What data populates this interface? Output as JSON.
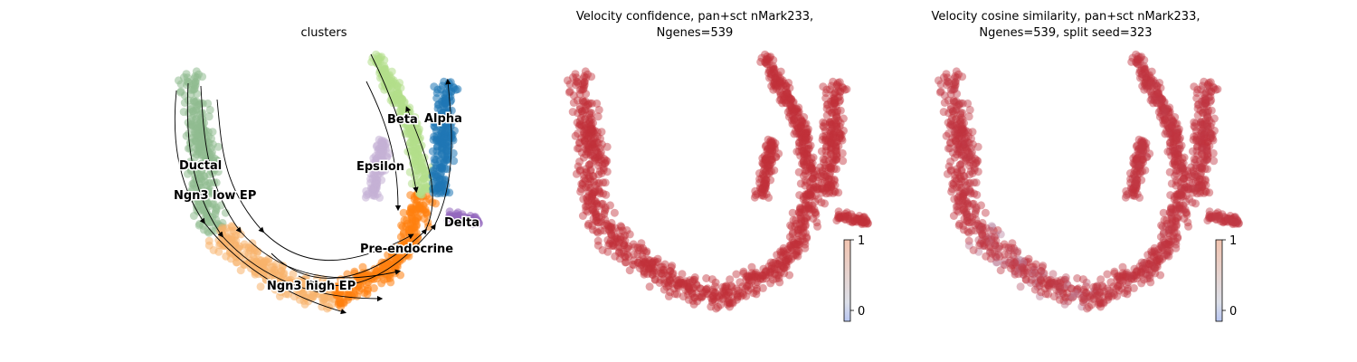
{
  "colors": {
    "Ductal": "#8fbc8f",
    "Ngn3 low EP": "#8fbc8f",
    "Ngn3 high EP": "#f7b26b",
    "Pre-endocrine": "#ff7f0e",
    "Beta": "#b2df8a",
    "Alpha": "#1f77b4",
    "Delta": "#9467bd",
    "Epsilon": "#c5b0d5",
    "velocity_high": "#c0303a",
    "velocity_low": "#b8c8f0",
    "stream": "#000000"
  },
  "panels": [
    {
      "title_lines": [
        "clusters"
      ],
      "clusters": [
        "Ductal",
        "Ngn3 low EP",
        "Ngn3 high EP",
        "Pre-endocrine",
        "Beta",
        "Alpha",
        "Delta",
        "Epsilon"
      ]
    },
    {
      "title_lines": [
        "Velocity confidence, pan+sct nMark233,",
        "Ngenes=539"
      ],
      "colorbar": {
        "colormap": "coolwarm",
        "ticks": [
          "1",
          "0"
        ]
      }
    },
    {
      "title_lines": [
        "Velocity cosine similarity, pan+sct nMark233,",
        "Ngenes=539, split seed=323"
      ],
      "colorbar": {
        "colormap": "coolwarm",
        "ticks": [
          "1",
          "0"
        ]
      }
    }
  ],
  "chart_data": [
    {
      "type": "scatter",
      "subtype": "umap-velocity-stream",
      "title": "clusters",
      "color_by": "clusters",
      "categories": [
        "Ductal",
        "Ngn3 low EP",
        "Ngn3 high EP",
        "Pre-endocrine",
        "Beta",
        "Alpha",
        "Delta",
        "Epsilon"
      ],
      "axes": "off",
      "legend": "on data"
    },
    {
      "type": "scatter",
      "subtype": "umap",
      "title": "Velocity confidence, pan+sct nMark233, Ngenes=539",
      "color_by": "velocity confidence",
      "colorbar_ticks": [
        1,
        0
      ],
      "axes": "off"
    },
    {
      "type": "scatter",
      "subtype": "umap",
      "title": "Velocity cosine similarity, pan+sct nMark233, Ngenes=539, split seed=323",
      "color_by": "velocity cosine similarity",
      "colorbar_ticks": [
        1,
        0
      ],
      "axes": "off"
    }
  ]
}
